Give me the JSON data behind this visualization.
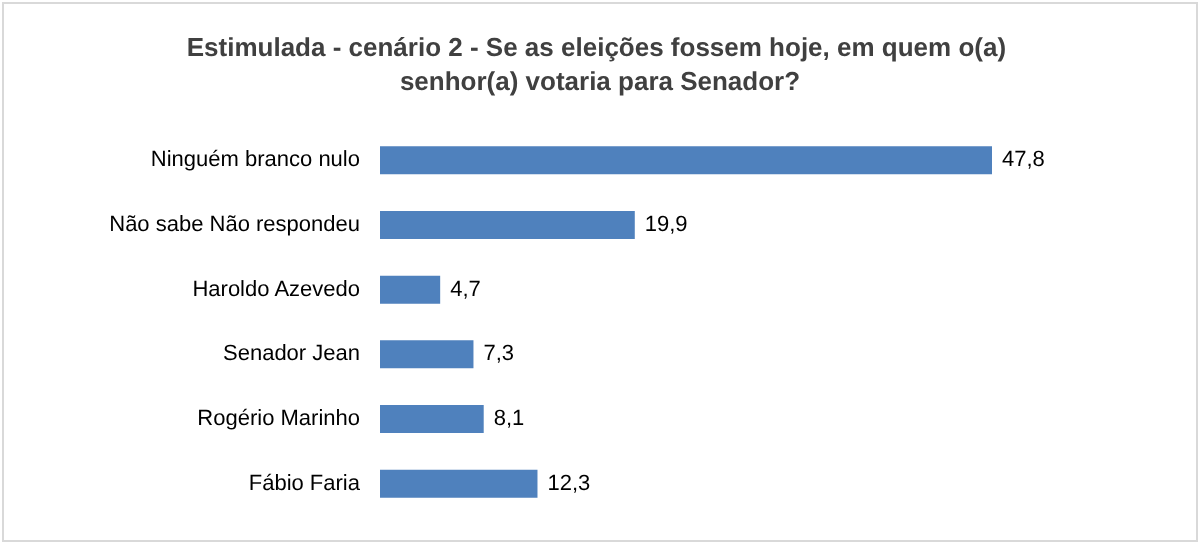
{
  "chart_data": {
    "type": "bar",
    "orientation": "horizontal",
    "title": "Estimulada - cenário 2 - Se as eleições fossem hoje, em quem o(a) senhor(a) votaria para Senador?",
    "categories": [
      "Ninguém branco nulo",
      "Não sabe Não respondeu",
      "Haroldo Azevedo",
      "Senador Jean",
      "Rogério Marinho",
      "Fábio Faria"
    ],
    "values": [
      47.8,
      19.9,
      4.7,
      7.3,
      8.1,
      12.3
    ],
    "value_labels": [
      "47,8",
      "19,9",
      "4,7",
      "7,3",
      "8,1",
      "12,3"
    ],
    "color": "#4f81bd"
  }
}
